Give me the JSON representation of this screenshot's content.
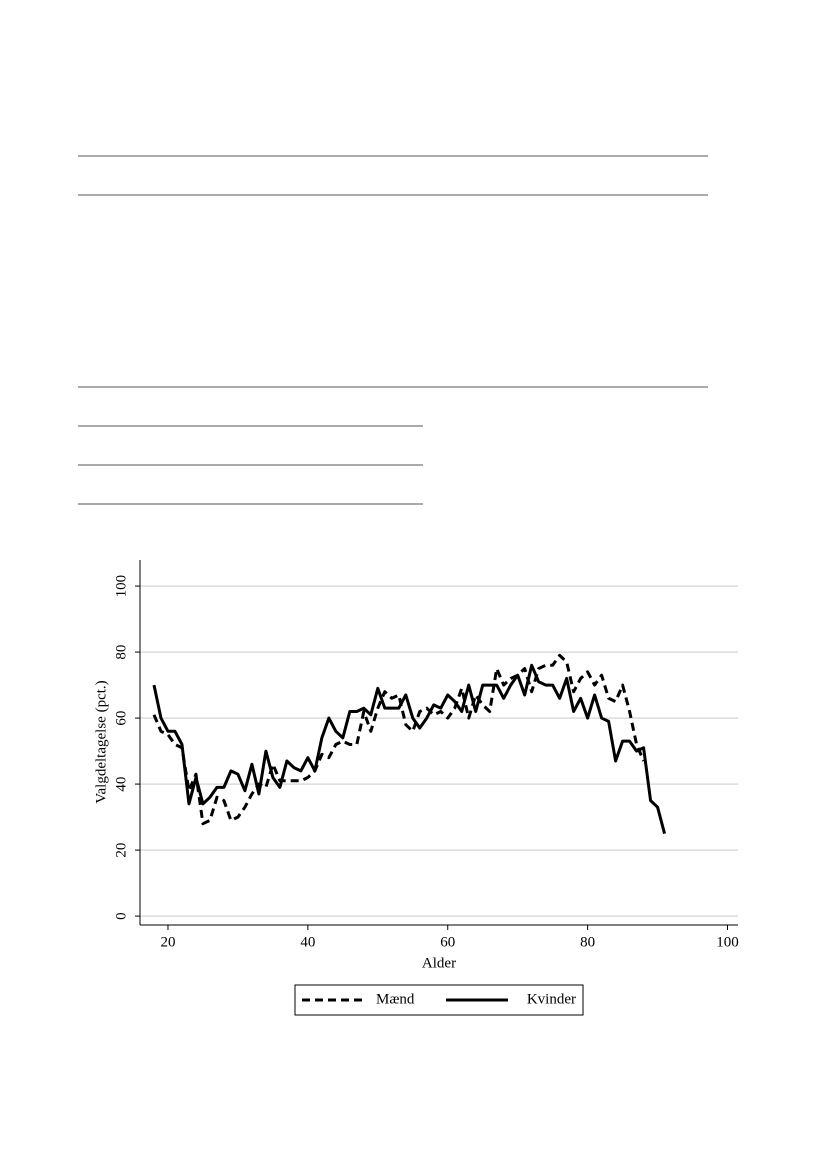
{
  "chart_data": {
    "type": "line",
    "xlabel": "Alder",
    "ylabel": "Valgdeltagelse (pct.)",
    "x": [
      18,
      19,
      20,
      21,
      22,
      23,
      24,
      25,
      26,
      27,
      28,
      29,
      30,
      31,
      32,
      33,
      34,
      35,
      36,
      37,
      38,
      39,
      40,
      41,
      42,
      43,
      44,
      45,
      46,
      47,
      48,
      49,
      50,
      51,
      52,
      53,
      54,
      55,
      56,
      57,
      58,
      59,
      60,
      61,
      62,
      63,
      64,
      65,
      66,
      67,
      68,
      69,
      70,
      71,
      72,
      73,
      74,
      75,
      76,
      77,
      78,
      79,
      80,
      81,
      82,
      83,
      84,
      85,
      86,
      87,
      88,
      89,
      90,
      91
    ],
    "series": [
      {
        "name": "Mænd",
        "color": "#000000",
        "dashed": true,
        "values": [
          61,
          56,
          55,
          52,
          51,
          38,
          43,
          28,
          29,
          36,
          35,
          29,
          30,
          33,
          37,
          40,
          39,
          46,
          41,
          41,
          41,
          41,
          42,
          44,
          49,
          48,
          52,
          53,
          52,
          52,
          62,
          56,
          63,
          68,
          66,
          67,
          58,
          56,
          62,
          63,
          61,
          62,
          60,
          63,
          69,
          60,
          67,
          64,
          62,
          75,
          70,
          72,
          73,
          75,
          68,
          75,
          76,
          76,
          79,
          77,
          68,
          72,
          74,
          70,
          73,
          66,
          65,
          70,
          62,
          52,
          47,
          null,
          null,
          null
        ]
      },
      {
        "name": "Kvinder",
        "color": "#000000",
        "dashed": false,
        "values": [
          70,
          60,
          56,
          56,
          52,
          34,
          42,
          34,
          36,
          39,
          39,
          44,
          43,
          38,
          46,
          37,
          50,
          42,
          39,
          47,
          45,
          44,
          48,
          44,
          54,
          60,
          56,
          54,
          62,
          62,
          63,
          61,
          69,
          63,
          63,
          63,
          67,
          60,
          57,
          60,
          64,
          63,
          67,
          65,
          62,
          70,
          62,
          70,
          70,
          70,
          66,
          70,
          73,
          67,
          76,
          71,
          70,
          70,
          66,
          72,
          62,
          66,
          60,
          67,
          60,
          59,
          47,
          53,
          53,
          50,
          51,
          35,
          33,
          25
        ]
      }
    ],
    "xlim": [
      16,
      101.5
    ],
    "xticks": [
      20,
      40,
      60,
      80,
      100
    ],
    "ylim": [
      -2.7,
      107.9
    ],
    "yticks": [
      0,
      20,
      40,
      60,
      80,
      100
    ],
    "grid": true,
    "legend": "bottom"
  }
}
